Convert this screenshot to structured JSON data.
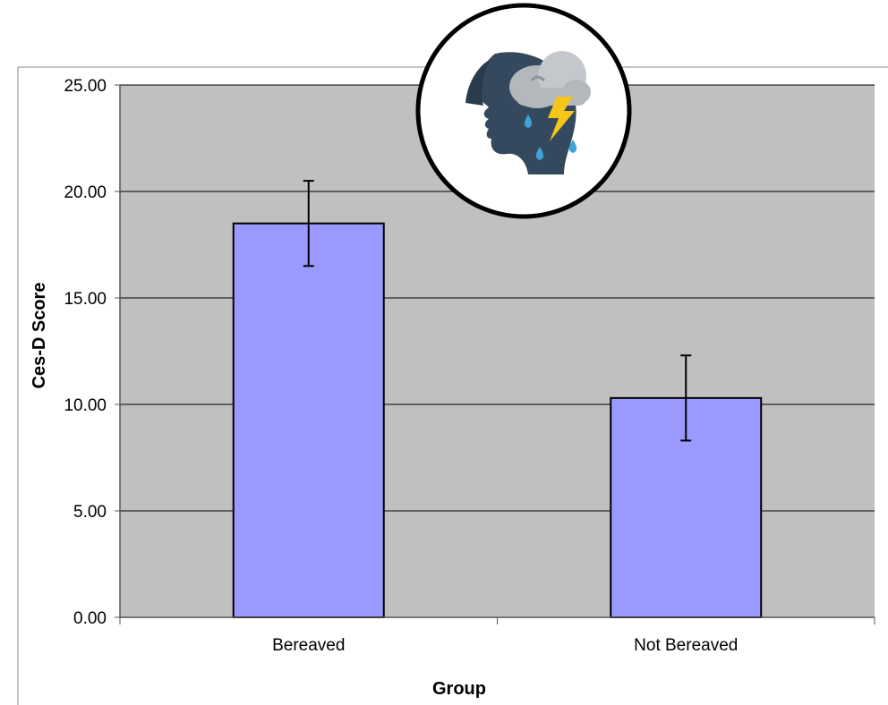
{
  "chart_data": {
    "type": "bar",
    "categories": [
      "Bereaved",
      "Not Bereaved"
    ],
    "values": [
      18.5,
      10.3
    ],
    "error": [
      2.0,
      2.0
    ],
    "xlabel": "Group",
    "ylabel": "Ces-D Score",
    "ylim": [
      0,
      25
    ],
    "yticks": [
      "0.00",
      "5.00",
      "10.00",
      "15.00",
      "20.00",
      "25.00"
    ],
    "grid": true,
    "legend": "none",
    "colors": {
      "bar_fill": "#9999ff",
      "bar_stroke": "#000000",
      "plot_background": "#c0c0c0",
      "gridline": "#000000"
    }
  },
  "badge": {
    "icon": "head-storm-cloud-icon",
    "colors": {
      "head": "#35495e",
      "cloud": "#b3b8bd",
      "bolt": "#f5c518",
      "drop": "#3fa3d6"
    }
  }
}
